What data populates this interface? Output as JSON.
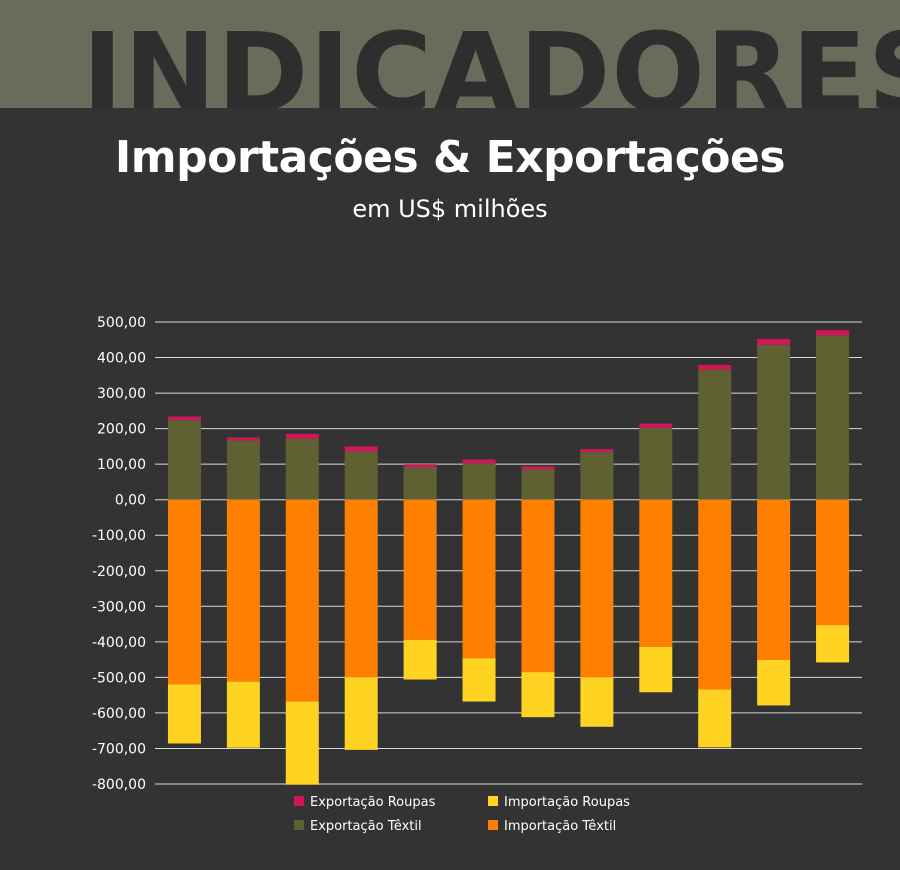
{
  "header": {
    "word": "INDICADORES"
  },
  "chart_data": {
    "type": "bar",
    "stacked": true,
    "title": "Importações & Exportações",
    "subtitle": "em US$ milhões",
    "categories": [
      "",
      "",
      "",
      "",
      "",
      "",
      "",
      "",
      "",
      "",
      "",
      ""
    ],
    "ylim": [
      -800,
      500
    ],
    "yticks": [
      500,
      400,
      300,
      200,
      100,
      0,
      -100,
      -200,
      -300,
      -400,
      -500,
      -600,
      -700,
      -800
    ],
    "ytick_labels": [
      "500,00",
      "400,00",
      "300,00",
      "200,00",
      "100,00",
      "0,00",
      "-100,00",
      "-200,00",
      "-300,00",
      "-400,00",
      "-500,00",
      "-600,00",
      "-700,00",
      "-800,00"
    ],
    "grid": true,
    "legend_position": "bottom",
    "series": [
      {
        "name": "Exportação Têxtil",
        "color": "#5f6133",
        "values": [
          224,
          167,
          172,
          136,
          92,
          102,
          86,
          134,
          202,
          366,
          436,
          463
        ]
      },
      {
        "name": "Exportação Roupas",
        "color": "#d4145a",
        "values": [
          10,
          8,
          13,
          14,
          8,
          11,
          8,
          8,
          12,
          13,
          16,
          14
        ]
      },
      {
        "name": "Importação Têxtil",
        "color": "#ff8000",
        "values": [
          -520,
          -512,
          -568,
          -500,
          -394,
          -446,
          -485,
          -500,
          -414,
          -534,
          -451,
          -353
        ]
      },
      {
        "name": "Importação Roupas",
        "color": "#ffd321",
        "values": [
          -166,
          -186,
          -234,
          -204,
          -112,
          -122,
          -127,
          -139,
          -128,
          -163,
          -128,
          -105
        ]
      }
    ],
    "legend": [
      {
        "name": "Exportação Roupas",
        "color": "#d4145a"
      },
      {
        "name": "Importação Roupas",
        "color": "#ffd321"
      },
      {
        "name": "Exportação Têxtil",
        "color": "#5f6133"
      },
      {
        "name": "Importação Têxtil",
        "color": "#ff8000"
      }
    ]
  }
}
